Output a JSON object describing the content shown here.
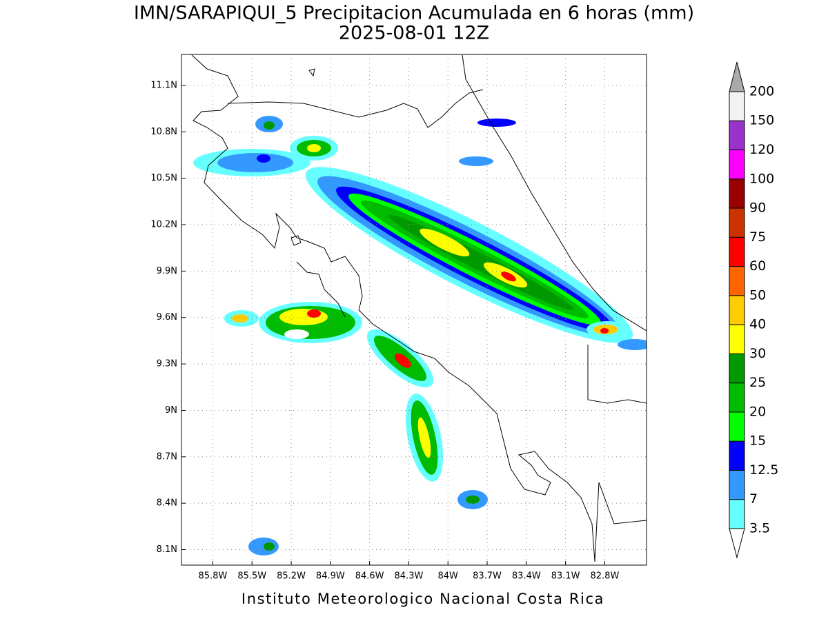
{
  "header": {
    "title": "IMN/SARAPIQUI_5 Precipitacion Acumulada en 6 horas (mm)",
    "subtitle": "2025-08-01 12Z"
  },
  "map": {
    "xlim": [
      -86.04,
      -82.48
    ],
    "ylim": [
      8.0,
      11.3
    ],
    "grid": true,
    "xticks": [
      {
        "value": -85.8,
        "label": "85.8W"
      },
      {
        "value": -85.5,
        "label": "85.5W"
      },
      {
        "value": -85.2,
        "label": "85.2W"
      },
      {
        "value": -84.9,
        "label": "84.9W"
      },
      {
        "value": -84.6,
        "label": "84.6W"
      },
      {
        "value": -84.3,
        "label": "84.3W"
      },
      {
        "value": -84,
        "label": "84W"
      },
      {
        "value": -83.7,
        "label": "83.7W"
      },
      {
        "value": -83.4,
        "label": "83.4W"
      },
      {
        "value": -83.1,
        "label": "83.1W"
      },
      {
        "value": -82.8,
        "label": "82.8W"
      }
    ],
    "yticks": [
      {
        "value": 8.1,
        "label": "8.1N"
      },
      {
        "value": 8.4,
        "label": "8.4N"
      },
      {
        "value": 8.7,
        "label": "8.7N"
      },
      {
        "value": 9,
        "label": "9N"
      },
      {
        "value": 9.3,
        "label": "9.3N"
      },
      {
        "value": 9.6,
        "label": "9.6N"
      },
      {
        "value": 9.9,
        "label": "9.9N"
      },
      {
        "value": 10.2,
        "label": "10.2N"
      },
      {
        "value": 10.5,
        "label": "10.5N"
      },
      {
        "value": 10.8,
        "label": "10.8N"
      },
      {
        "value": 11.1,
        "label": "11.1N"
      }
    ]
  },
  "colorbar": {
    "levels": [
      3.5,
      7,
      12.5,
      15,
      20,
      25,
      30,
      40,
      50,
      60,
      75,
      90,
      100,
      120,
      150,
      200
    ],
    "colors": [
      "#66ffff",
      "#3399ff",
      "#0000ff",
      "#00ff00",
      "#00bb00",
      "#009900",
      "#ffff00",
      "#ffcc00",
      "#ff6600",
      "#ff0000",
      "#cc3300",
      "#990000",
      "#ff00ff",
      "#9933cc",
      "#f2f2f2"
    ],
    "under_color": "#ffffff",
    "over_color": "#aaaaaa"
  },
  "footer": "Instituto Meteorologico Nacional Costa Rica"
}
